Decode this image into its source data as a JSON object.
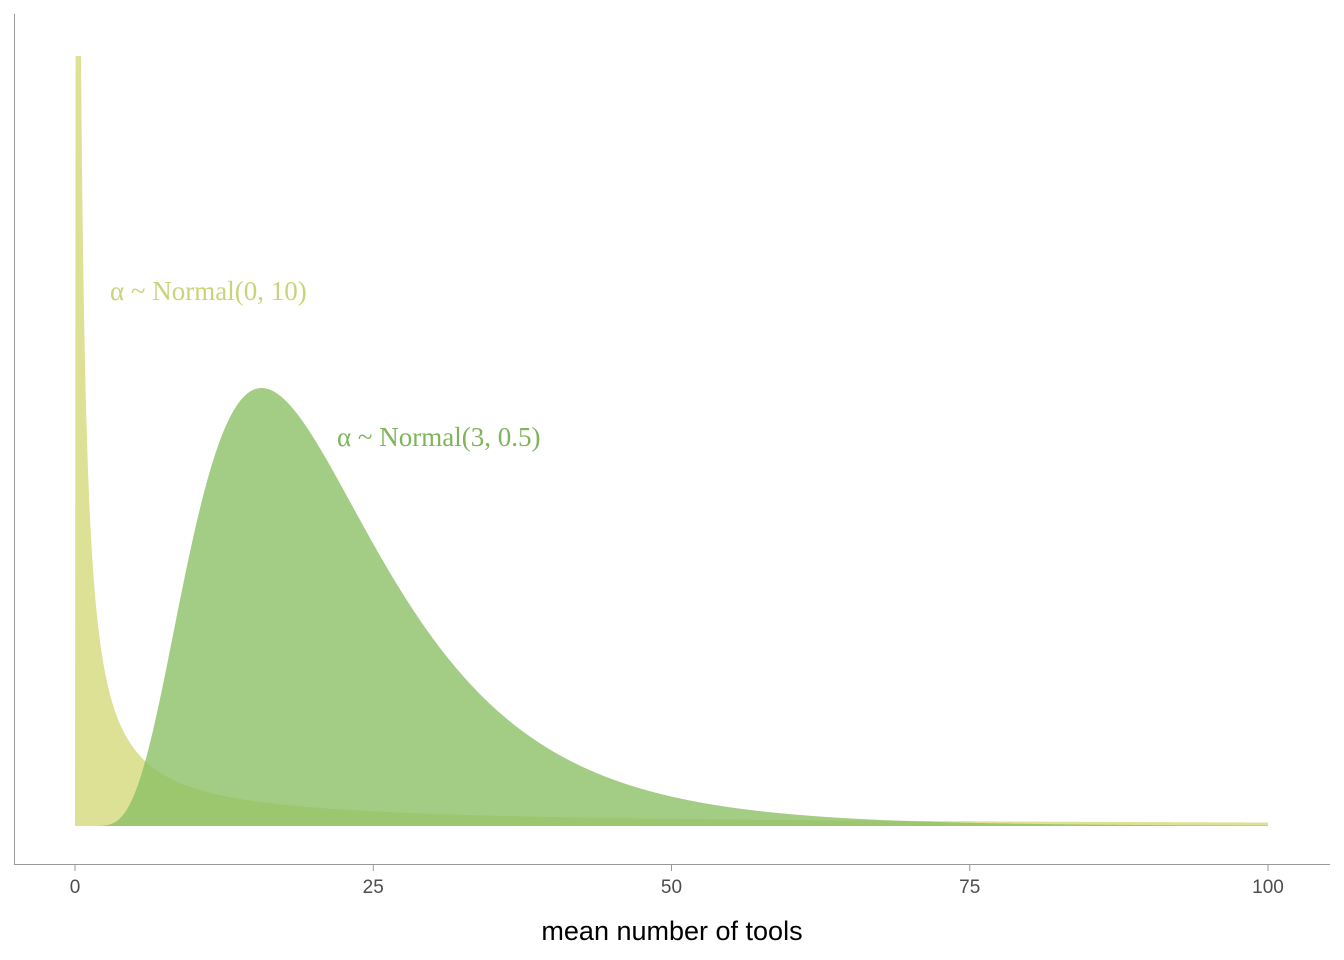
{
  "chart_data": {
    "type": "area",
    "xlabel": "mean number of tools",
    "ylabel": "",
    "title": "",
    "xlim": [
      -5,
      105
    ],
    "xticks": [
      0,
      25,
      50,
      75,
      100
    ],
    "grid": false,
    "y_axis_ticks_shown": false,
    "series": [
      {
        "distribution": "exp(Normal(0, 10))",
        "mu": 0,
        "sigma": 10,
        "color": "#d4d97a",
        "label": "α ~ Normal(0, 10)"
      },
      {
        "distribution": "exp(Normal(3, 0.5))",
        "mu": 3,
        "sigma": 0.5,
        "color": "#8cc065",
        "label": "α ~ Normal(3, 0.5)"
      }
    ],
    "x_range": [
      0,
      100
    ],
    "colors": {
      "axis_line": "#999999",
      "tick_text": "#4d4d4d"
    }
  }
}
